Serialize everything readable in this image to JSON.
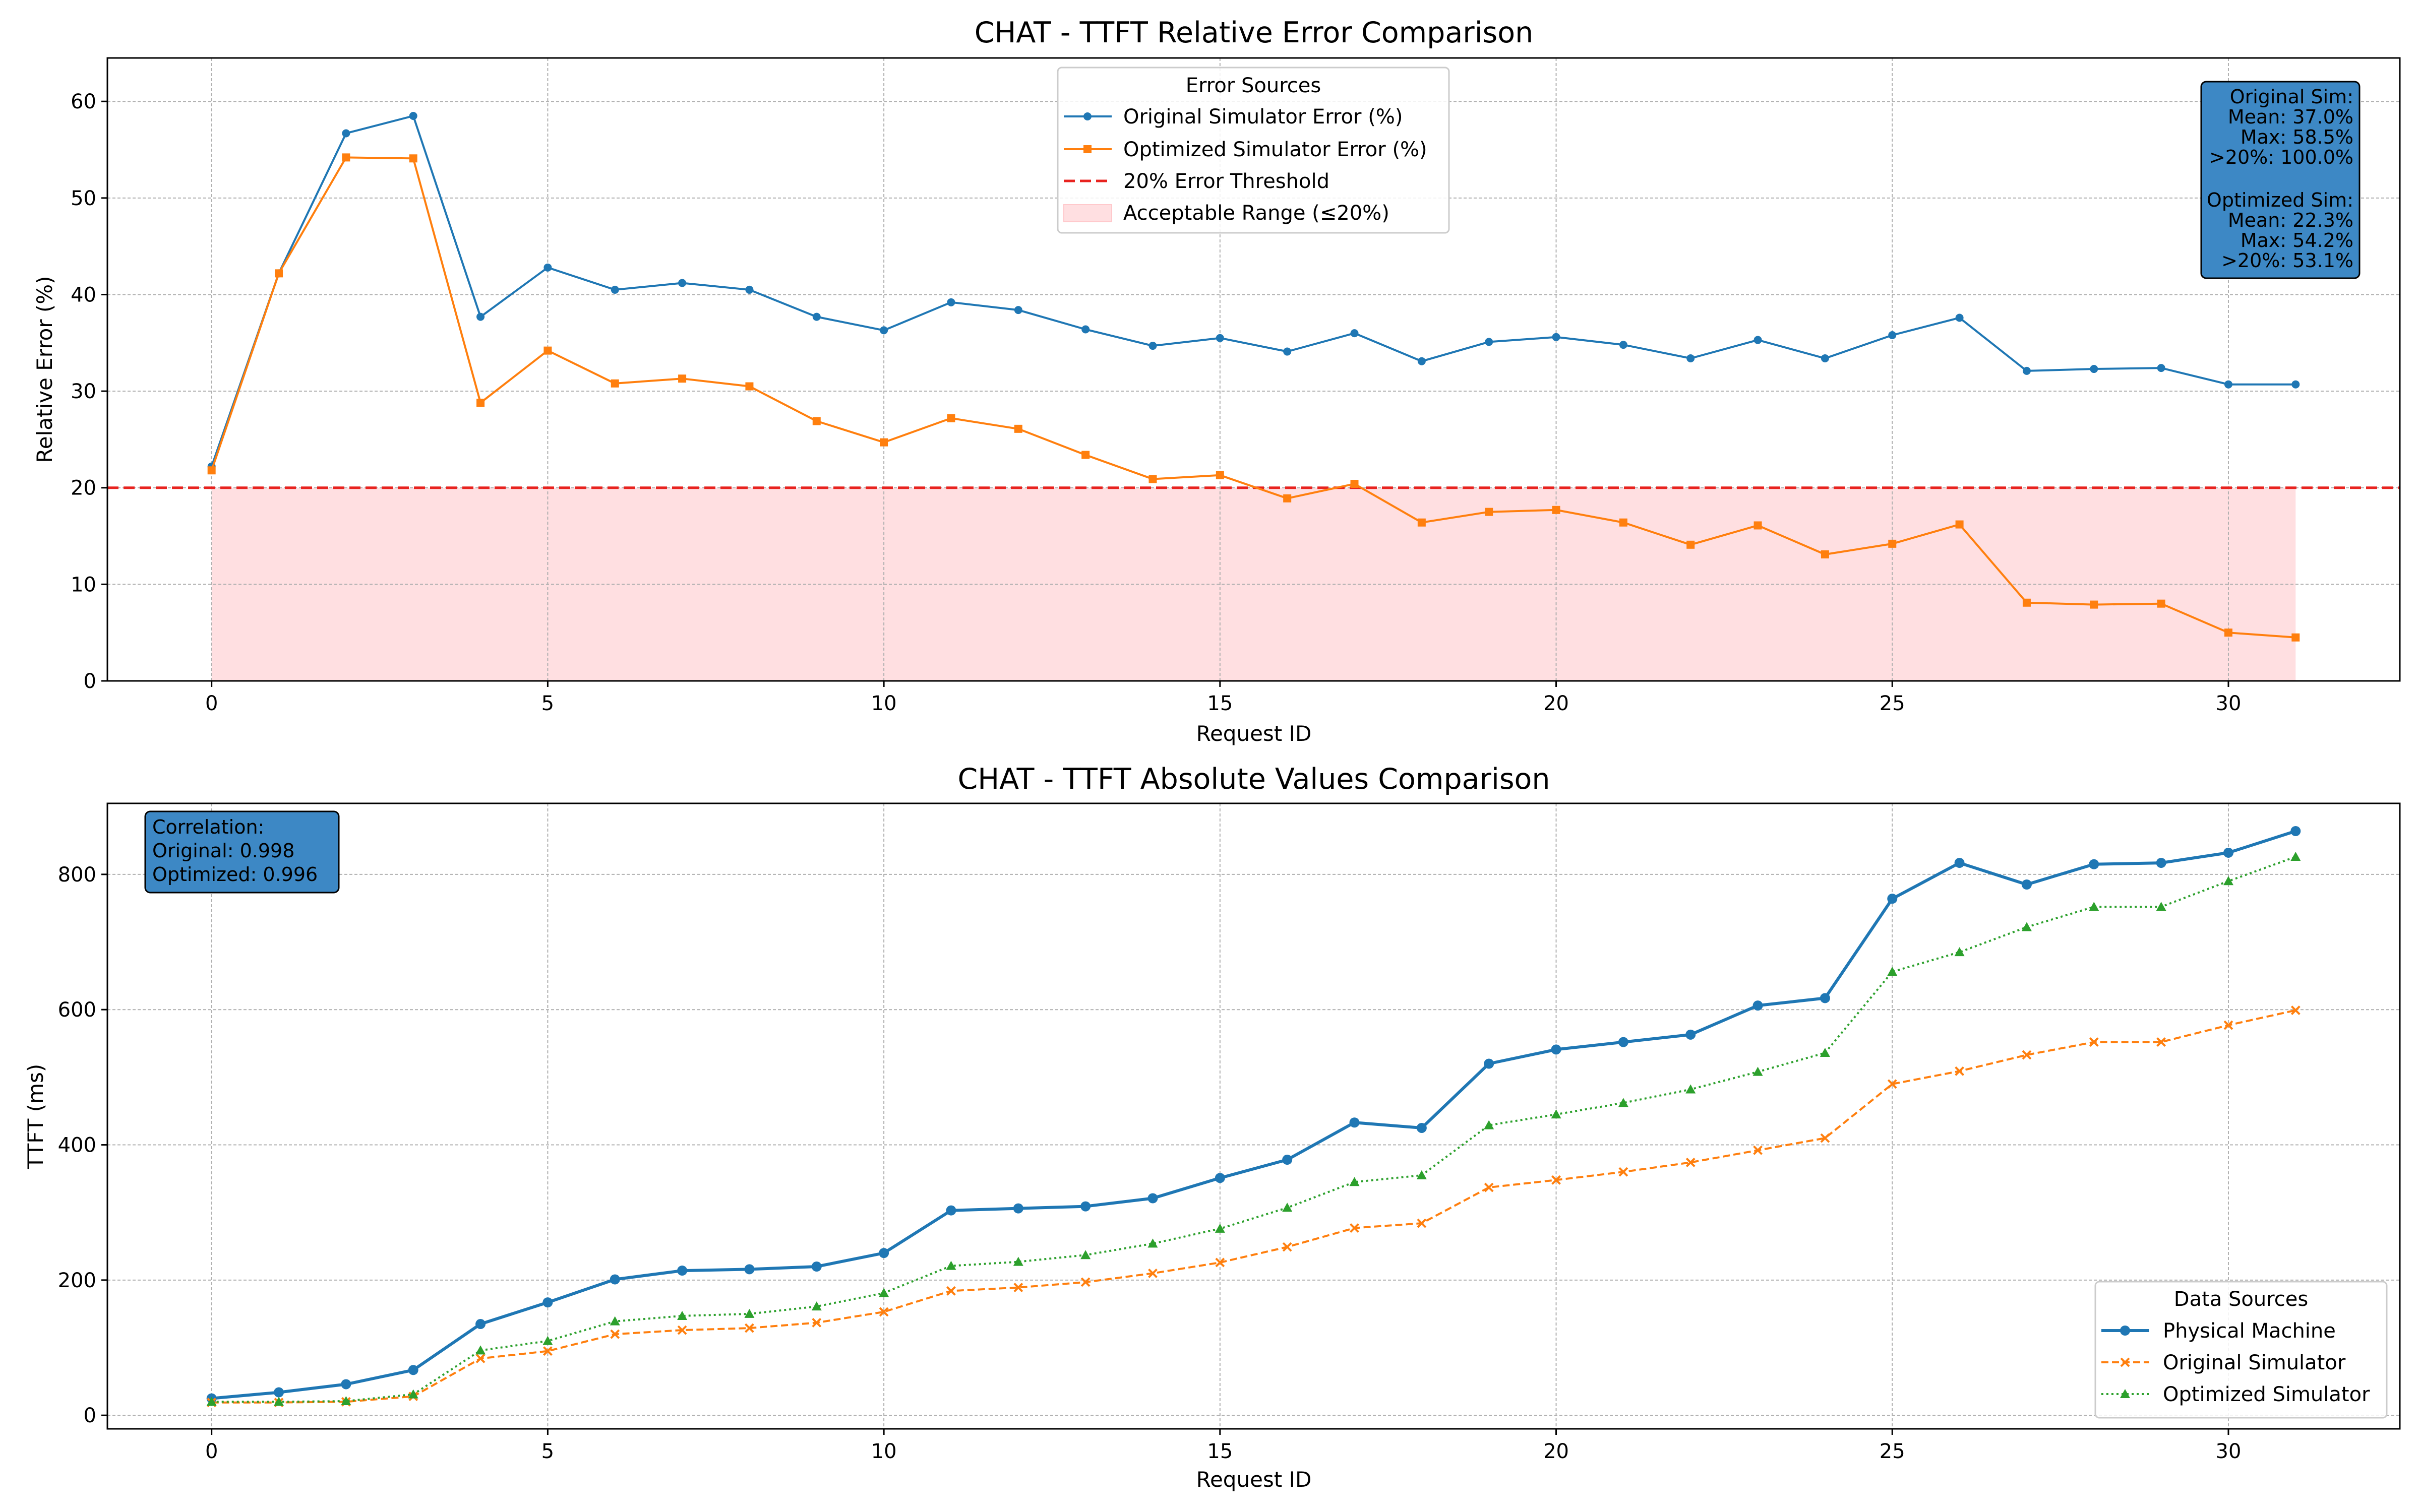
{
  "chart_data": [
    {
      "type": "line",
      "title": "CHAT - TTFT Relative Error Comparison",
      "xlabel": "Request ID",
      "ylabel": "Relative Error (%)",
      "xlim": [
        -1.55,
        32.55
      ],
      "ylim": [
        0,
        64.5
      ],
      "xticks": [
        0,
        5,
        10,
        15,
        20,
        25,
        30
      ],
      "yticks": [
        0,
        10,
        20,
        30,
        40,
        50,
        60
      ],
      "grid": true,
      "legend_title": "Error Sources",
      "legend_position": "top-center",
      "x": [
        0,
        1,
        2,
        3,
        4,
        5,
        6,
        7,
        8,
        9,
        10,
        11,
        12,
        13,
        14,
        15,
        16,
        17,
        18,
        19,
        20,
        21,
        22,
        23,
        24,
        25,
        26,
        27,
        28,
        29,
        30,
        31
      ],
      "series": [
        {
          "name": "Original Simulator Error (%)",
          "color": "#1f77b4",
          "marker": "circle",
          "linestyle": "solid",
          "values": [
            22.2,
            42.2,
            56.7,
            58.5,
            37.7,
            42.8,
            40.5,
            41.2,
            40.5,
            37.7,
            36.3,
            39.2,
            38.4,
            36.4,
            34.7,
            35.5,
            34.1,
            36.0,
            33.1,
            35.1,
            35.6,
            34.8,
            33.4,
            35.3,
            33.4,
            35.8,
            37.6,
            32.1,
            32.3,
            32.4,
            30.7,
            30.7
          ]
        },
        {
          "name": "Optimized Simulator Error (%)",
          "color": "#ff7f0e",
          "marker": "square",
          "linestyle": "solid",
          "values": [
            21.8,
            42.2,
            54.2,
            54.1,
            28.8,
            34.2,
            30.8,
            31.3,
            30.5,
            26.9,
            24.7,
            27.2,
            26.1,
            23.4,
            20.9,
            21.3,
            18.9,
            20.4,
            16.4,
            17.5,
            17.7,
            16.4,
            14.1,
            16.1,
            13.1,
            14.2,
            16.2,
            8.1,
            7.9,
            8.0,
            5.0,
            4.5
          ]
        }
      ],
      "threshold": {
        "name": "20% Error Threshold",
        "value": 20,
        "color": "#e8231f",
        "linestyle": "dashed"
      },
      "shaded_region": {
        "name": "Acceptable Range (≤20%)",
        "from": 0,
        "to": 20,
        "x_range": [
          0,
          31
        ],
        "color": "#ffdfe1"
      },
      "stats_box": {
        "position": "top-right",
        "color": "#3d88c5",
        "lines": [
          "Original Sim:",
          "Mean: 37.0%",
          "Max: 58.5%",
          ">20%: 100.0%",
          "",
          "Optimized Sim:",
          "Mean: 22.3%",
          "Max: 54.2%",
          ">20%: 53.1%"
        ]
      }
    },
    {
      "type": "line",
      "title": "CHAT - TTFT Absolute Values Comparison",
      "xlabel": "Request ID",
      "ylabel": "TTFT (ms)",
      "xlim": [
        -1.55,
        32.55
      ],
      "ylim": [
        -20,
        905
      ],
      "xticks": [
        0,
        5,
        10,
        15,
        20,
        25,
        30
      ],
      "yticks": [
        0,
        200,
        400,
        600,
        800
      ],
      "grid": true,
      "legend_title": "Data Sources",
      "legend_position": "bottom-right",
      "x": [
        0,
        1,
        2,
        3,
        4,
        5,
        6,
        7,
        8,
        9,
        10,
        11,
        12,
        13,
        14,
        15,
        16,
        17,
        18,
        19,
        20,
        21,
        22,
        23,
        24,
        25,
        26,
        27,
        28,
        29,
        30,
        31
      ],
      "series": [
        {
          "name": "Physical Machine",
          "color": "#1f77b4",
          "marker": "circle",
          "linestyle": "solid",
          "values": [
            25,
            34,
            46,
            67,
            135,
            167,
            201,
            214,
            216,
            220,
            240,
            303,
            306,
            309,
            321,
            351,
            378,
            433,
            425,
            520,
            541,
            552,
            563,
            606,
            617,
            764,
            817,
            785,
            815,
            817,
            832,
            864
          ]
        },
        {
          "name": "Original Simulator",
          "color": "#ff7f0e",
          "marker": "x",
          "linestyle": "dashed",
          "values": [
            19,
            19,
            20,
            28,
            84,
            95,
            120,
            126,
            129,
            137,
            153,
            184,
            189,
            197,
            210,
            226,
            249,
            277,
            284,
            337,
            348,
            360,
            374,
            392,
            410,
            490,
            509,
            533,
            552,
            552,
            577,
            599
          ]
        },
        {
          "name": "Optimized Simulator",
          "color": "#2ca02c",
          "marker": "triangle",
          "linestyle": "dotted",
          "values": [
            20,
            20,
            21,
            31,
            96,
            110,
            139,
            147,
            150,
            161,
            181,
            221,
            227,
            237,
            254,
            276,
            307,
            345,
            355,
            429,
            445,
            462,
            482,
            508,
            536,
            656,
            685,
            722,
            752,
            752,
            790,
            826
          ]
        }
      ],
      "stats_box": {
        "position": "top-left",
        "color": "#3d88c5",
        "lines": [
          "Correlation:",
          "Original: 0.998",
          "Optimized: 0.996"
        ]
      }
    }
  ]
}
